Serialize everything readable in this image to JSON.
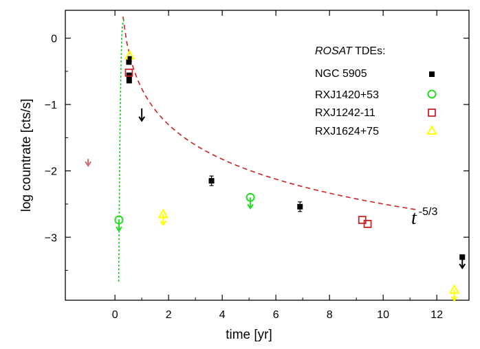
{
  "chart_data": {
    "type": "scatter",
    "xlabel": "time [yr]",
    "ylabel": "log countrate [cts/s]",
    "xlim": [
      -1.85,
      13.2
    ],
    "ylim": [
      -3.95,
      0.42
    ],
    "xticks": [
      0,
      2,
      4,
      6,
      8,
      10,
      12
    ],
    "yticks": [
      0,
      -1,
      -2,
      -3
    ],
    "grid": false,
    "legend": {
      "title_italic": "ROSAT",
      "title_rest": " TDEs:",
      "placement": "top-right"
    },
    "series": [
      {
        "name": "NGC 5905",
        "color": "#000000",
        "marker": "filled-square",
        "points": [
          {
            "x": 0.52,
            "y": -0.36
          },
          {
            "x": 0.53,
            "y": -0.56
          },
          {
            "x": 0.53,
            "y": -0.64
          },
          {
            "x": 3.6,
            "y": -2.15
          },
          {
            "x": 6.9,
            "y": -2.54
          },
          {
            "x": 12.95,
            "y": -3.3
          }
        ],
        "upper_limits": [
          {
            "x": 1.0,
            "y": -1.1
          },
          {
            "x": 12.95,
            "y": -3.3
          }
        ]
      },
      {
        "name": "RXJ1420+53",
        "color": "#22dd22",
        "marker": "open-circle",
        "points": [
          {
            "x": 0.15,
            "y": -2.74
          },
          {
            "x": 5.05,
            "y": -2.4
          }
        ],
        "upper_limits": [
          {
            "x": 0.15,
            "y": -2.74
          },
          {
            "x": 5.05,
            "y": -2.4
          }
        ]
      },
      {
        "name": "RXJ1242-11",
        "color": "#cc2222",
        "marker": "open-square",
        "points": [
          {
            "x": 0.52,
            "y": -0.52
          },
          {
            "x": 9.22,
            "y": -2.74
          },
          {
            "x": 9.42,
            "y": -2.8
          }
        ],
        "upper_limits": [
          {
            "x": -1.0,
            "y": -1.82
          }
        ]
      },
      {
        "name": "RXJ1624+75",
        "color": "#ffff00",
        "marker": "open-triangle",
        "points": [
          {
            "x": 0.55,
            "y": -0.26
          },
          {
            "x": 1.8,
            "y": -2.65
          },
          {
            "x": 12.65,
            "y": -3.79
          }
        ],
        "upper_limits": [
          {
            "x": 1.8,
            "y": -2.65
          },
          {
            "x": 12.65,
            "y": -3.79
          }
        ]
      }
    ],
    "models": [
      {
        "style": "dashed",
        "color": "#cc2222",
        "form": "t^-5/3 decay",
        "t0": 0.1,
        "A": -0.84,
        "x_range": [
          0.3,
          11.3
        ]
      },
      {
        "style": "dotted",
        "color": "#22cc22",
        "form": "steep decay",
        "x_range": [
          0.14,
          0.33
        ],
        "y_range": [
          -3.68,
          0.28
        ]
      }
    ],
    "annotation": {
      "text": "t",
      "superscript": "-5/3"
    }
  }
}
